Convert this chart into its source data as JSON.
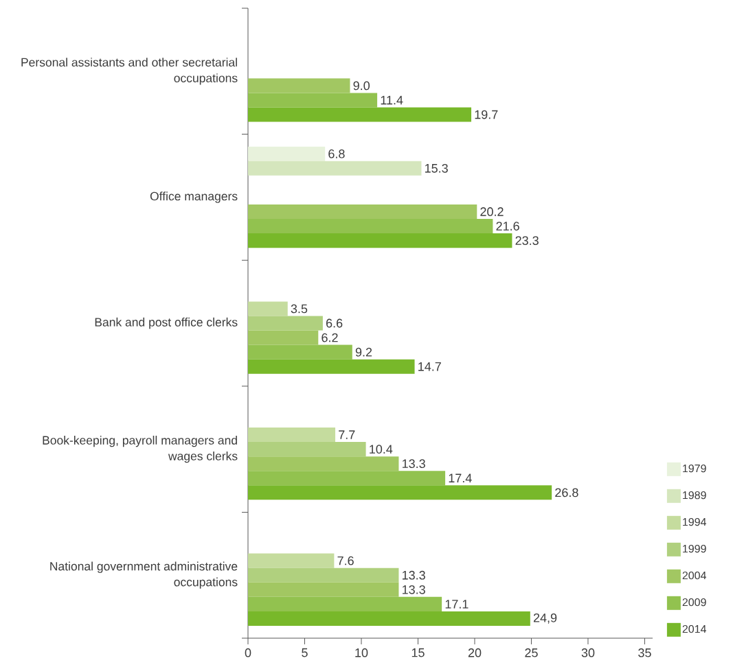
{
  "chart_data": {
    "type": "bar",
    "orientation": "horizontal",
    "categories": [
      "Personal assistants and other secretarial occupations",
      "Office managers",
      "Bank and post office clerks",
      "Book-keeping, payroll managers and wages clerks",
      "National government administrative occupations"
    ],
    "series": [
      {
        "name": "1979",
        "color": "#e8f2dc",
        "values": [
          null,
          6.8,
          null,
          null,
          null
        ],
        "value_labels": [
          null,
          "6.8",
          null,
          null,
          null
        ]
      },
      {
        "name": "1989",
        "color": "#d5e6bd",
        "values": [
          null,
          15.3,
          null,
          null,
          null
        ],
        "value_labels": [
          null,
          "15.3",
          null,
          null,
          null
        ]
      },
      {
        "name": "1994",
        "color": "#c5dc9e",
        "values": [
          null,
          null,
          3.5,
          7.7,
          7.6
        ],
        "value_labels": [
          null,
          null,
          "3.5",
          "7.7",
          "7.6"
        ]
      },
      {
        "name": "1999",
        "color": "#b0d07e",
        "values": [
          null,
          null,
          6.6,
          10.4,
          13.3
        ],
        "value_labels": [
          null,
          null,
          "6.6",
          "10.4",
          "13.3"
        ]
      },
      {
        "name": "2004",
        "color": "#a2c762",
        "values": [
          9.0,
          20.2,
          6.2,
          13.3,
          13.3
        ],
        "value_labels": [
          "9.0",
          "20.2",
          "6.2",
          "13.3",
          "13.3"
        ]
      },
      {
        "name": "2009",
        "color": "#92c24f",
        "values": [
          11.4,
          21.6,
          9.2,
          17.4,
          17.1
        ],
        "value_labels": [
          "11.4",
          "21.6",
          "9.2",
          "17.4",
          "17.1"
        ]
      },
      {
        "name": "2014",
        "color": "#78b82a",
        "values": [
          19.7,
          23.3,
          14.7,
          26.8,
          24.9
        ],
        "value_labels": [
          "19.7",
          "23.3",
          "14.7",
          "26.8",
          "24,9"
        ]
      }
    ],
    "xlim": [
      0,
      35.7
    ],
    "xticks": [
      0,
      5,
      10,
      15,
      20,
      25,
      30,
      35
    ],
    "legend": "bottom right"
  }
}
